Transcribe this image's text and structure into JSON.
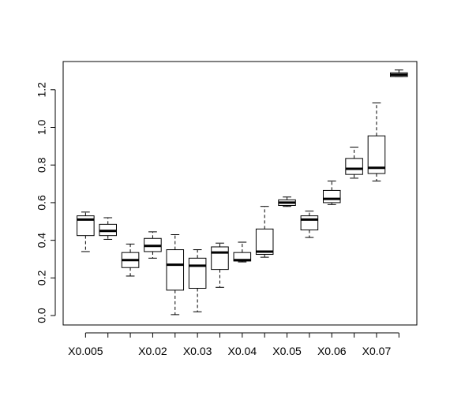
{
  "chart_data": {
    "type": "boxplot",
    "title": "",
    "xlabel": "",
    "ylabel": "",
    "ylim": [
      -0.05,
      1.35
    ],
    "yticks": [
      "0.0",
      "0.2",
      "0.4",
      "0.6",
      "0.8",
      "1.0",
      "1.2"
    ],
    "tick_labels_shown": [
      {
        "index": 0,
        "label": "X0.005"
      },
      {
        "index": 3,
        "label": "X0.02"
      },
      {
        "index": 5,
        "label": "X0.03"
      },
      {
        "index": 7,
        "label": "X0.04"
      },
      {
        "index": 9,
        "label": "X0.05"
      },
      {
        "index": 11,
        "label": "X0.06"
      },
      {
        "index": 13,
        "label": "X0.07"
      }
    ],
    "boxes": [
      {
        "whisker_low": 0.34,
        "q1": 0.425,
        "median": 0.51,
        "q3": 0.53,
        "whisker_high": 0.55
      },
      {
        "whisker_low": 0.405,
        "q1": 0.425,
        "median": 0.45,
        "q3": 0.485,
        "whisker_high": 0.52
      },
      {
        "whisker_low": 0.21,
        "q1": 0.255,
        "median": 0.295,
        "q3": 0.335,
        "whisker_high": 0.38
      },
      {
        "whisker_low": 0.305,
        "q1": 0.34,
        "median": 0.37,
        "q3": 0.41,
        "whisker_high": 0.445
      },
      {
        "whisker_low": 0.005,
        "q1": 0.135,
        "median": 0.27,
        "q3": 0.35,
        "whisker_high": 0.43
      },
      {
        "whisker_low": 0.02,
        "q1": 0.145,
        "median": 0.265,
        "q3": 0.305,
        "whisker_high": 0.35
      },
      {
        "whisker_low": 0.15,
        "q1": 0.245,
        "median": 0.335,
        "q3": 0.365,
        "whisker_high": 0.385
      },
      {
        "whisker_low": 0.285,
        "q1": 0.29,
        "median": 0.295,
        "q3": 0.335,
        "whisker_high": 0.39
      },
      {
        "whisker_low": 0.31,
        "q1": 0.325,
        "median": 0.34,
        "q3": 0.46,
        "whisker_high": 0.58
      },
      {
        "whisker_low": 0.58,
        "q1": 0.585,
        "median": 0.6,
        "q3": 0.615,
        "whisker_high": 0.63
      },
      {
        "whisker_low": 0.415,
        "q1": 0.455,
        "median": 0.51,
        "q3": 0.53,
        "whisker_high": 0.555
      },
      {
        "whisker_low": 0.59,
        "q1": 0.6,
        "median": 0.62,
        "q3": 0.665,
        "whisker_high": 0.715
      },
      {
        "whisker_low": 0.73,
        "q1": 0.75,
        "median": 0.78,
        "q3": 0.835,
        "whisker_high": 0.895
      },
      {
        "whisker_low": 0.715,
        "q1": 0.755,
        "median": 0.785,
        "q3": 0.955,
        "whisker_high": 1.13
      },
      {
        "whisker_low": 1.27,
        "q1": 1.27,
        "median": 1.28,
        "q3": 1.29,
        "whisker_high": 1.305
      }
    ],
    "grid": false,
    "legend": "none"
  }
}
